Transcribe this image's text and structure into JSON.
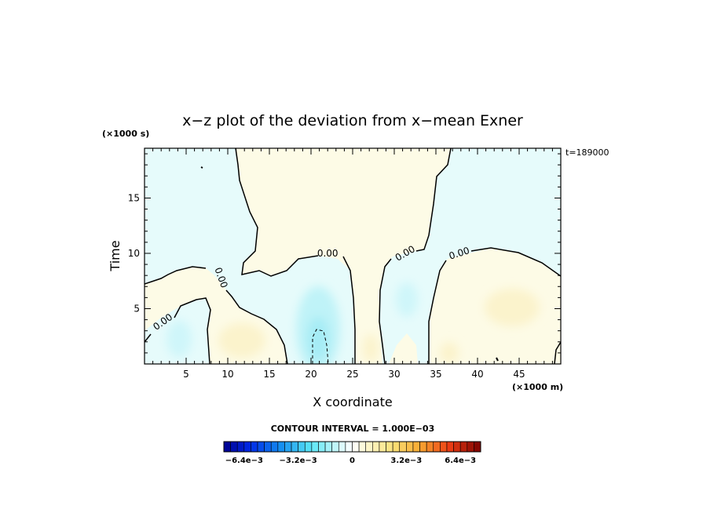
{
  "chart_data": {
    "type": "heatmap",
    "title": "x−z plot of the deviation from x−mean Exner",
    "xlabel": "X coordinate",
    "ylabel": "Time",
    "x_unit": "(×1000 m)",
    "y_unit": "(×1000 s)",
    "time_stamp": "t=189000",
    "xlim": [
      0,
      50
    ],
    "ylim": [
      0,
      19.5
    ],
    "x_ticks": [
      5,
      10,
      15,
      20,
      25,
      30,
      35,
      40,
      45
    ],
    "y_ticks": [
      5,
      10,
      15
    ],
    "contour_interval_text": "CONTOUR INTERVAL = 1.000E−03",
    "contour_labels": [
      {
        "text": "0.00",
        "x": 2.2,
        "y": 3.8
      },
      {
        "text": "0.00",
        "x": 9.2,
        "y": 7.8
      },
      {
        "text": "0.00",
        "x": 22.0,
        "y": 10.0
      },
      {
        "text": "0.00",
        "x": 31.3,
        "y": 10.0
      },
      {
        "text": "0.00",
        "x": 37.8,
        "y": 10.0
      }
    ],
    "colorbar": {
      "min": -0.0076,
      "max": 0.0076,
      "levels": 38,
      "tick_labels": [
        "−6.4e−3",
        "−3.2e−3",
        "0",
        "3.2e−3",
        "6.4e−3"
      ],
      "tick_values": [
        -0.0064,
        -0.0032,
        0,
        0.0032,
        0.0064
      ]
    },
    "regions": [
      {
        "sign": "negative",
        "level": -0.0004,
        "desc": "left cyan region upper-left"
      },
      {
        "sign": "negative",
        "level": -0.0004,
        "desc": "right cyan region upper-right"
      },
      {
        "sign": "negative",
        "level": -0.0004,
        "desc": "central cyan channel"
      },
      {
        "sign": "positive",
        "level": 0.0003,
        "desc": "central yellow plume"
      },
      {
        "sign": "positive",
        "level": 0.0003,
        "desc": "lower-left yellow region"
      },
      {
        "sign": "positive",
        "level": 0.0003,
        "desc": "lower-right yellow region"
      },
      {
        "sign": "negative",
        "level": -0.0018,
        "desc": "strong negative core near x=21"
      }
    ],
    "colors": {
      "neg_light": "#e6fbfb",
      "pos_light": "#fdfbe6",
      "neg_mid": "#bff3f8",
      "neg_strong": "#8fe3f2",
      "pos_mid": "#fbf1c4",
      "pos_strong": "#f7e6a6"
    }
  }
}
